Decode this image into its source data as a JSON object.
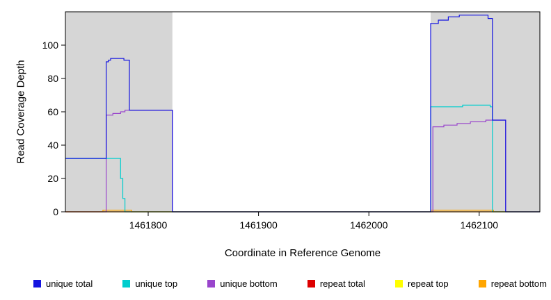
{
  "figure": {
    "x_axis_label": "Coordinate in Reference Genome",
    "y_axis_label": "Read Coverage Depth"
  },
  "chart_data": {
    "type": "line",
    "title": "",
    "xlabel": "Coordinate in Reference Genome",
    "ylabel": "Read Coverage Depth",
    "xlim": [
      1461725,
      1462155
    ],
    "ylim": [
      0,
      120
    ],
    "x_ticks": [
      1461800,
      1461900,
      1462000,
      1462100
    ],
    "y_ticks": [
      0,
      20,
      40,
      60,
      80,
      100
    ],
    "grid": false,
    "legend_position": "bottom",
    "shaded_regions": [
      {
        "x0": 1461725,
        "x1": 1461822,
        "color": "#D6D6D6"
      },
      {
        "x0": 1462056,
        "x1": 1462155,
        "color": "#D6D6D6"
      }
    ],
    "series": [
      {
        "id": "repeat-total",
        "name": "repeat total",
        "color": "#FF0000",
        "points": [
          [
            1461725,
            0
          ],
          [
            1462155,
            0
          ]
        ]
      },
      {
        "id": "repeat-top",
        "name": "repeat top",
        "color": "#FFFF00",
        "points": [
          [
            1461725,
            0
          ],
          [
            1462155,
            0
          ]
        ]
      },
      {
        "id": "repeat-bottom",
        "name": "repeat bottom",
        "color": "#FFA500",
        "points": [
          [
            1461725,
            0
          ],
          [
            1461759,
            0
          ],
          [
            1461759,
            1
          ],
          [
            1461785,
            1
          ],
          [
            1461785,
            0
          ],
          [
            1462056,
            0
          ],
          [
            1462056,
            1
          ],
          [
            1462113,
            1
          ],
          [
            1462113,
            0
          ],
          [
            1462155,
            0
          ]
        ]
      },
      {
        "id": "unique-bottom",
        "name": "unique bottom",
        "color": "#9945CC",
        "points": [
          [
            1461725,
            0
          ],
          [
            1461762,
            0
          ],
          [
            1461762,
            58
          ],
          [
            1461768,
            58
          ],
          [
            1461768,
            59
          ],
          [
            1461775,
            59
          ],
          [
            1461775,
            60
          ],
          [
            1461779,
            60
          ],
          [
            1461779,
            61
          ],
          [
            1461822,
            61
          ],
          [
            1461822,
            0
          ],
          [
            1462058,
            0
          ],
          [
            1462058,
            51
          ],
          [
            1462068,
            51
          ],
          [
            1462068,
            52
          ],
          [
            1462080,
            52
          ],
          [
            1462080,
            53
          ],
          [
            1462092,
            53
          ],
          [
            1462092,
            54
          ],
          [
            1462106,
            54
          ],
          [
            1462106,
            55
          ],
          [
            1462124,
            55
          ],
          [
            1462124,
            0
          ],
          [
            1462155,
            0
          ]
        ]
      },
      {
        "id": "unique-top",
        "name": "unique top",
        "color": "#00CDCD",
        "points": [
          [
            1461725,
            32
          ],
          [
            1461775,
            32
          ],
          [
            1461775,
            20
          ],
          [
            1461777,
            20
          ],
          [
            1461777,
            8
          ],
          [
            1461779,
            8
          ],
          [
            1461779,
            0
          ],
          [
            1462056,
            0
          ],
          [
            1462056,
            63
          ],
          [
            1462085,
            63
          ],
          [
            1462085,
            64
          ],
          [
            1462110,
            64
          ],
          [
            1462110,
            63
          ],
          [
            1462112,
            63
          ],
          [
            1462112,
            0
          ],
          [
            1462155,
            0
          ]
        ]
      },
      {
        "id": "unique-total",
        "name": "unique total",
        "color": "#1414E0",
        "points": [
          [
            1461725,
            32
          ],
          [
            1461762,
            32
          ],
          [
            1461762,
            90
          ],
          [
            1461764,
            90
          ],
          [
            1461764,
            91
          ],
          [
            1461766,
            91
          ],
          [
            1461766,
            92
          ],
          [
            1461778,
            92
          ],
          [
            1461778,
            91
          ],
          [
            1461783,
            91
          ],
          [
            1461783,
            61
          ],
          [
            1461822,
            61
          ],
          [
            1461822,
            0
          ],
          [
            1462056,
            0
          ],
          [
            1462056,
            113
          ],
          [
            1462063,
            113
          ],
          [
            1462063,
            115
          ],
          [
            1462072,
            115
          ],
          [
            1462072,
            117
          ],
          [
            1462082,
            117
          ],
          [
            1462082,
            118
          ],
          [
            1462108,
            118
          ],
          [
            1462108,
            116
          ],
          [
            1462112,
            116
          ],
          [
            1462112,
            55
          ],
          [
            1462124,
            55
          ],
          [
            1462124,
            0
          ],
          [
            1462155,
            0
          ]
        ]
      }
    ],
    "legend": [
      {
        "label": "unique total",
        "color": "#1414E0"
      },
      {
        "label": "unique top",
        "color": "#00CDCD"
      },
      {
        "label": "unique bottom",
        "color": "#9945CC"
      },
      {
        "label": "repeat total",
        "color": "#DD0000"
      },
      {
        "label": "repeat top",
        "color": "#FFFF00"
      },
      {
        "label": "repeat bottom",
        "color": "#FFA500"
      }
    ]
  }
}
